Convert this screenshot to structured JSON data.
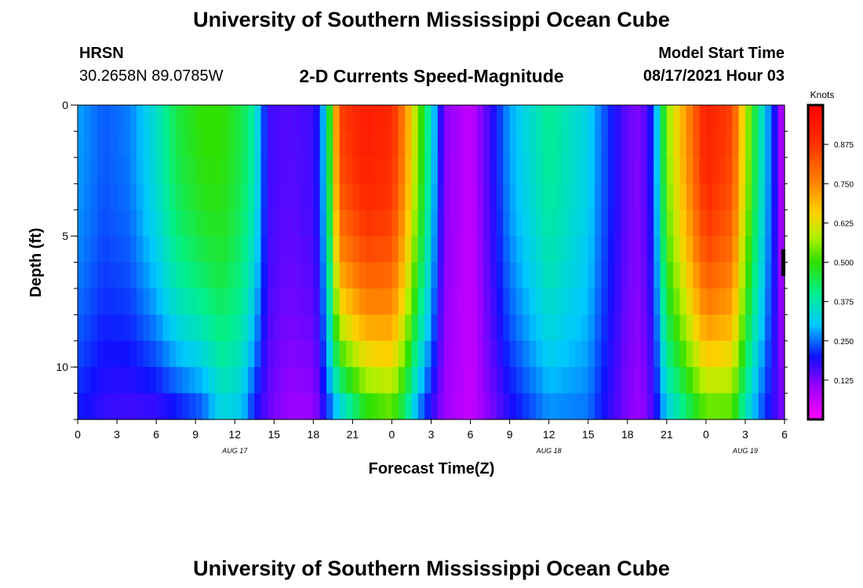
{
  "page": {
    "title_top": "University of Southern Mississippi Ocean Cube",
    "title_bottom": "University of Southern Mississippi Ocean Cube",
    "station": "HRSN",
    "coords": "30.2658N  89.0785W",
    "product": "2-D Currents Speed-Magnitude",
    "model_label": "Model Start Time",
    "model_time": "08/17/2021 Hour 03"
  },
  "chart_data": {
    "type": "heatmap",
    "title": "2-D Currents Speed-Magnitude",
    "xlabel": "Forecast Time(Z)",
    "ylabel": "Depth (ft)",
    "x_ticks": [
      "0",
      "3",
      "6",
      "9",
      "12",
      "15",
      "18",
      "21",
      "0",
      "3",
      "6",
      "9",
      "12",
      "15",
      "18",
      "21",
      "0",
      "3",
      "6"
    ],
    "x_range": [
      0,
      54
    ],
    "y_ticks": [
      "0",
      "5",
      "10"
    ],
    "y_range": [
      0,
      12
    ],
    "date_labels": [
      {
        "text": "AUG 17",
        "hour": 12
      },
      {
        "text": "AUG 18",
        "hour": 36
      },
      {
        "text": "AUG 19",
        "hour": 51
      }
    ],
    "colorbar": {
      "label": "Knots",
      "min": 0,
      "max": 1.0,
      "ticks": [
        "0.875",
        "0.750",
        "0.625",
        "0.500",
        "0.375",
        "0.250",
        "0.125"
      ],
      "tick_values": [
        0.875,
        0.75,
        0.625,
        0.5,
        0.375,
        0.25,
        0.125
      ]
    },
    "profile_hours": [
      0,
      2,
      4,
      6,
      7.5,
      9.5,
      11,
      12.5,
      13.5,
      14.5,
      16,
      18,
      18.5,
      19,
      20,
      22,
      24,
      25,
      26,
      27,
      28,
      30,
      33,
      36,
      39,
      40,
      42,
      43,
      44,
      45,
      48,
      50,
      51,
      52,
      53.5,
      54
    ],
    "surface_speed_kt": [
      0.28,
      0.24,
      0.26,
      0.35,
      0.45,
      0.5,
      0.5,
      0.45,
      0.38,
      0.17,
      0.15,
      0.17,
      0.22,
      0.35,
      0.85,
      0.93,
      0.9,
      0.75,
      0.55,
      0.35,
      0.12,
      0.06,
      0.28,
      0.4,
      0.32,
      0.25,
      0.14,
      0.12,
      0.22,
      0.55,
      0.92,
      0.85,
      0.6,
      0.4,
      0.15,
      0.04
    ],
    "bottom_speed_kt": [
      0.2,
      0.17,
      0.16,
      0.16,
      0.18,
      0.22,
      0.32,
      0.3,
      0.19,
      0.14,
      0.1,
      0.1,
      0.14,
      0.2,
      0.28,
      0.45,
      0.5,
      0.4,
      0.25,
      0.17,
      0.1,
      0.06,
      0.18,
      0.26,
      0.25,
      0.2,
      0.12,
      0.1,
      0.16,
      0.3,
      0.5,
      0.5,
      0.35,
      0.25,
      0.15,
      0.12
    ]
  }
}
